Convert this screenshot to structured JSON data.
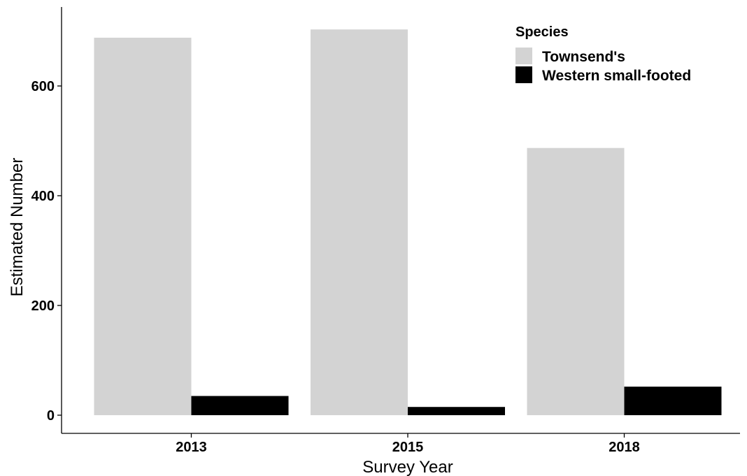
{
  "chart_data": {
    "type": "bar",
    "title": "",
    "xlabel": "Survey Year",
    "ylabel": "Estimated Number",
    "categories": [
      "2013",
      "2015",
      "2018"
    ],
    "series": [
      {
        "name": "Townsend's",
        "values": [
          688,
          703,
          487
        ],
        "color": "#d3d3d3"
      },
      {
        "name": "Western small-footed",
        "values": [
          35,
          15,
          52
        ],
        "color": "#000000"
      }
    ],
    "ylim": [
      0,
      700
    ],
    "yticks": [
      0,
      200,
      400,
      600
    ],
    "grid": false,
    "legend": {
      "title": "Species",
      "position": "top-right"
    }
  }
}
